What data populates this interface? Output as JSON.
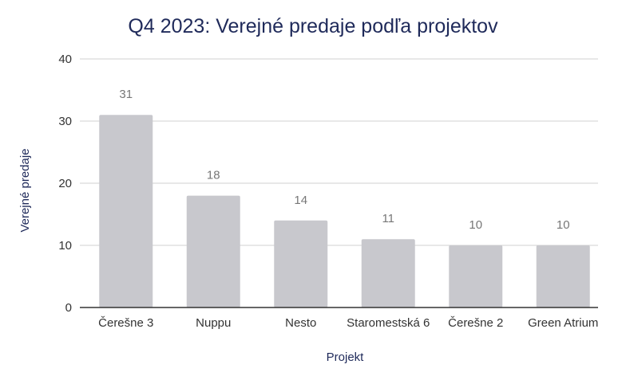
{
  "chart_data": {
    "type": "bar",
    "title": "Q4 2023: Verejné predaje podľa projektov",
    "xlabel": "Projekt",
    "ylabel": "Verejné predaje",
    "categories": [
      "Čerešne 3",
      "Nuppu",
      "Nesto",
      "Staromestská 6",
      "Čerešne 2",
      "Green Atrium"
    ],
    "values": [
      31,
      18,
      14,
      11,
      10,
      10
    ],
    "ylim": [
      0,
      40
    ],
    "yticks": [
      0,
      10,
      20,
      30,
      40
    ],
    "grid": true,
    "legend": "none",
    "colors": {
      "bar": "#c8c8cd",
      "title": "#1f2a5a",
      "data_label": "#777777"
    }
  }
}
